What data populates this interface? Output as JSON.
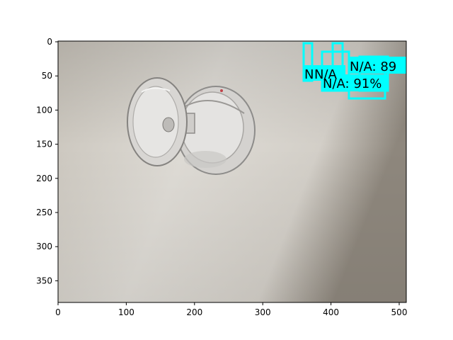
{
  "x_ticks": [
    "0",
    "100",
    "200",
    "300",
    "400",
    "500"
  ],
  "y_ticks": [
    "0",
    "50",
    "100",
    "150",
    "200",
    "250",
    "300",
    "350"
  ],
  "colors": {
    "box": "#00ffff",
    "label_bg": "#00ffff",
    "bg_top": "#c4bfb6",
    "bg_mid": "#dcd9d3",
    "bg_right": "#9b948a"
  },
  "detections": [
    {
      "label": "N/A",
      "text": "N/A: 89"
    },
    {
      "label": "N/A",
      "text": "N/A: 91%"
    },
    {
      "label": "N/A",
      "text": "N/A"
    },
    {
      "label": "N/A",
      "text": "N"
    }
  ]
}
